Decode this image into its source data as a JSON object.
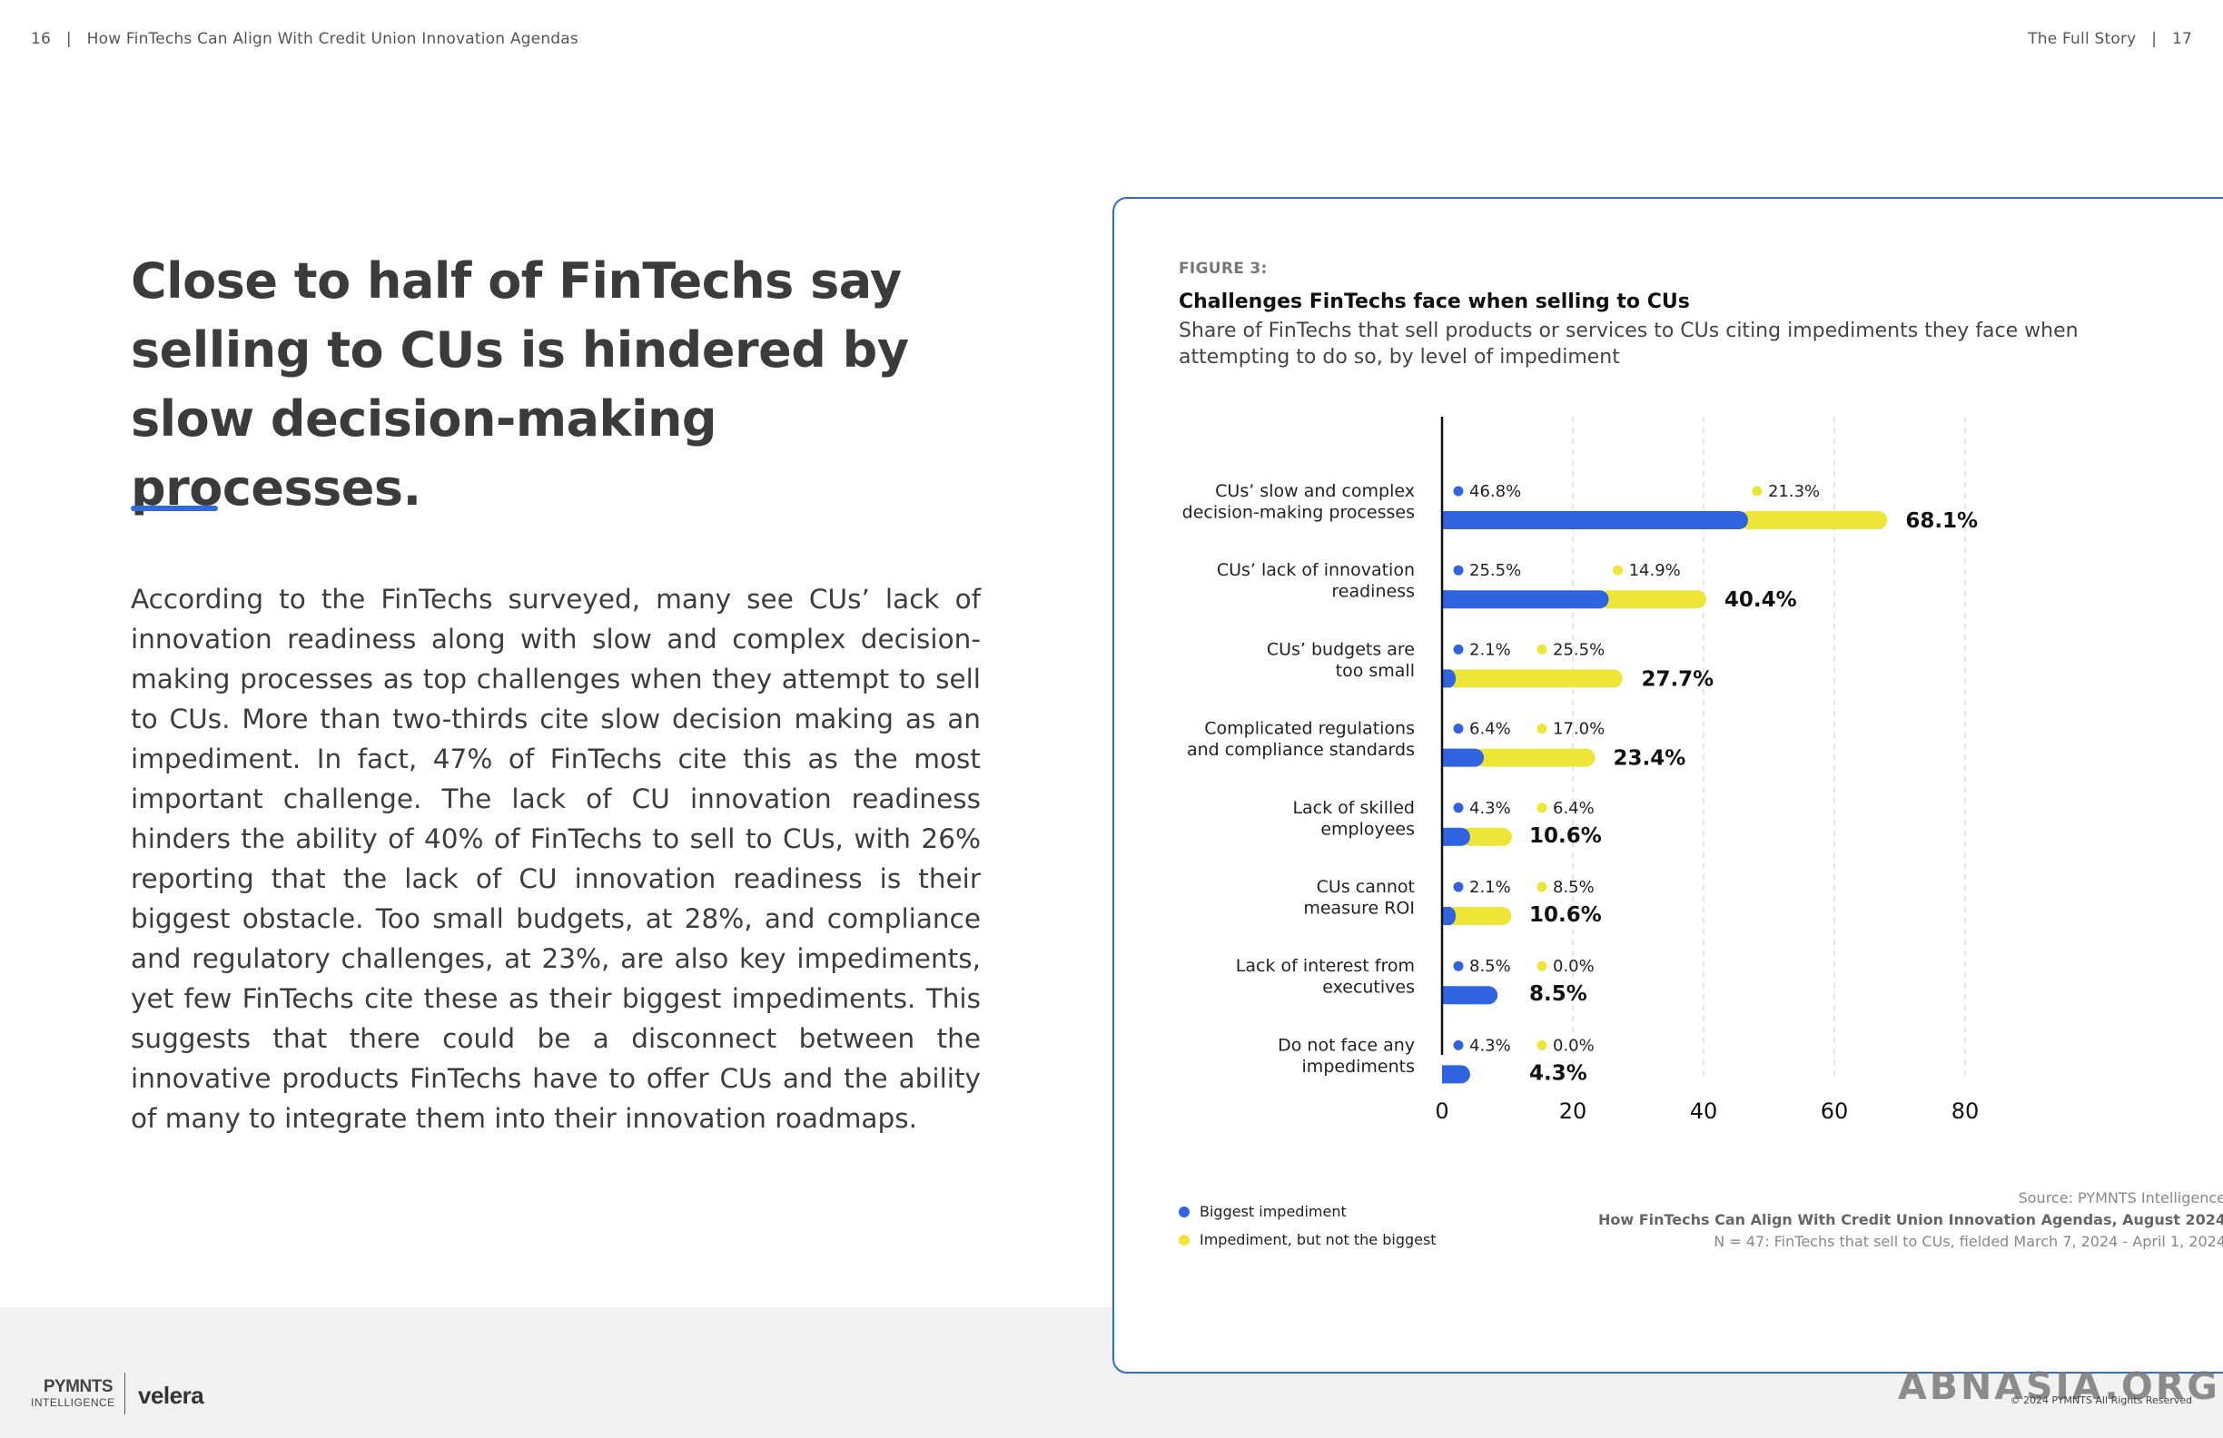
{
  "header": {
    "left_page": "16",
    "left_title": "How FinTechs Can Align With Credit Union Innovation Agendas",
    "right_title": "The Full Story",
    "right_page": "17",
    "separator": "|"
  },
  "headline": "Close to half of FinTechs say selling to CUs is hindered by slow decision-making processes.",
  "body": "According to the FinTechs surveyed, many see CUs’ lack of innovation readiness along with slow and complex decision-making processes as top challenges when they attempt to sell to CUs. More than two-thirds cite slow decision making as an impediment. In fact, 47% of FinTechs cite this as the most important challenge. The lack of CU innovation readiness hinders the ability of 40% of FinTechs to sell to CUs, with 26% reporting that the lack of CU innovation readiness is their biggest obstacle. Too small budgets, at 28%, and compliance and regulatory challenges, at 23%, are also key impediments, yet few FinTechs cite these as their biggest impediments. This suggests that there could be a disconnect between the innovative products FinTechs have to offer CUs and the ability of many to integrate them into their innovation roadmaps.",
  "colors": {
    "accent": "#2f6bde",
    "biggest": "#2f63e0",
    "not_biggest": "#ede637"
  },
  "chart_data": {
    "type": "bar",
    "orientation": "horizontal",
    "stacked": true,
    "figure_label": "FIGURE 3:",
    "title": "Challenges FinTechs face when selling to CUs",
    "subtitle": "Share of FinTechs that sell products or services to CUs citing impediments they face when attempting to do so, by level of impediment",
    "categories": [
      [
        "CUs’ slow and complex",
        "decision-making processes"
      ],
      [
        "CUs’ lack of innovation",
        "readiness"
      ],
      [
        "CUs’ budgets are",
        "too small"
      ],
      [
        "Complicated regulations",
        "and compliance standards"
      ],
      [
        "Lack of skilled",
        "employees"
      ],
      [
        "CUs cannot",
        "measure ROI"
      ],
      [
        "Lack of interest from",
        "executives"
      ],
      [
        "Do not face any",
        "impediments"
      ]
    ],
    "series": [
      {
        "name": "Biggest impediment",
        "color": "#2f63e0",
        "values": [
          46.8,
          25.5,
          2.1,
          6.4,
          4.3,
          2.1,
          8.5,
          4.3
        ]
      },
      {
        "name": "Impediment, but not the biggest",
        "color": "#ede637",
        "values": [
          21.3,
          14.9,
          25.5,
          17.0,
          6.4,
          8.5,
          0.0,
          0.0
        ]
      }
    ],
    "totals": [
      68.1,
      40.4,
      27.7,
      23.4,
      10.6,
      10.6,
      8.5,
      4.3
    ],
    "xlim": [
      0,
      80
    ],
    "xticks": [
      0,
      20,
      40,
      60,
      80
    ],
    "grid": true,
    "legend_position": "bottom-left"
  },
  "source": {
    "line1": "Source: PYMNTS Intelligence",
    "line2": "How FinTechs Can Align With Credit Union Innovation Agendas, August 2024",
    "line3": "N = 47: FinTechs that sell to CUs, fielded March 7, 2024 - April 1, 2024"
  },
  "footer": {
    "logo_pymnts_1": "PYMNTS",
    "logo_pymnts_2": "INTELLIGENCE",
    "logo_velera": "velera",
    "copyright": "© 2024 PYMNTS All Rights Reserved"
  },
  "watermark": "ABNASIA.ORG"
}
